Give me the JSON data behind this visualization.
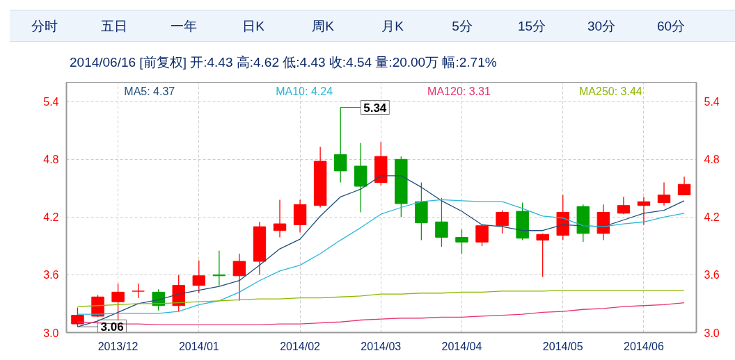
{
  "chart_data": {
    "type": "candlestick",
    "subtitle": "2014/06/16 [前复权] 开:4.43 高:4.62 低:4.43 收:4.54 量:20.00万 幅:2.71%",
    "categories": [
      null,
      null,
      "2013/12",
      null,
      null,
      null,
      "2014/01",
      null,
      null,
      null,
      null,
      "2014/02",
      null,
      null,
      null,
      "2014/03",
      null,
      null,
      null,
      "2014/04",
      null,
      null,
      null,
      null,
      "2014/05",
      null,
      null,
      null,
      "2014/06",
      null,
      null
    ],
    "ohlc": [
      [
        3.09,
        3.26,
        3.06,
        3.18
      ],
      [
        3.17,
        3.39,
        3.16,
        3.37
      ],
      [
        3.32,
        3.51,
        3.13,
        3.42
      ],
      [
        3.43,
        3.51,
        3.36,
        3.43
      ],
      [
        3.42,
        3.45,
        3.23,
        3.28
      ],
      [
        3.28,
        3.6,
        3.22,
        3.49
      ],
      [
        3.49,
        3.75,
        3.41,
        3.59
      ],
      [
        3.6,
        3.85,
        3.49,
        3.59
      ],
      [
        3.59,
        3.82,
        3.33,
        3.74
      ],
      [
        3.74,
        4.15,
        3.6,
        4.1
      ],
      [
        4.06,
        4.38,
        3.99,
        4.13
      ],
      [
        4.12,
        4.38,
        4.04,
        4.33
      ],
      [
        4.32,
        4.93,
        4.3,
        4.78
      ],
      [
        4.85,
        5.34,
        4.56,
        4.68
      ],
      [
        4.73,
        4.97,
        4.25,
        4.52
      ],
      [
        4.56,
        4.98,
        4.53,
        4.83
      ],
      [
        4.8,
        4.83,
        4.2,
        4.34
      ],
      [
        4.36,
        4.56,
        3.96,
        4.14
      ],
      [
        4.15,
        4.4,
        3.89,
        3.99
      ],
      [
        3.99,
        4.07,
        3.82,
        3.94
      ],
      [
        3.94,
        4.11,
        3.9,
        4.11
      ],
      [
        4.11,
        4.27,
        4.03,
        4.25
      ],
      [
        4.26,
        4.35,
        3.96,
        3.98
      ],
      [
        3.96,
        4.03,
        3.58,
        4.02
      ],
      [
        4.01,
        4.43,
        3.96,
        4.25
      ],
      [
        4.31,
        4.33,
        3.94,
        4.03
      ],
      [
        4.03,
        4.33,
        3.96,
        4.25
      ],
      [
        4.24,
        4.41,
        4.23,
        4.32
      ],
      [
        4.32,
        4.41,
        4.12,
        4.36
      ],
      [
        4.35,
        4.56,
        4.32,
        4.43
      ],
      [
        4.43,
        4.62,
        4.43,
        4.54
      ]
    ],
    "colors": [
      "#ff0000",
      "#ff0000",
      "#ff0000",
      "#ff0000",
      "#00a000",
      "#ff0000",
      "#ff0000",
      "#00a000",
      "#ff0000",
      "#ff0000",
      "#ff0000",
      "#ff0000",
      "#ff0000",
      "#00a000",
      "#00a000",
      "#ff0000",
      "#00a000",
      "#00a000",
      "#00a000",
      "#00a000",
      "#ff0000",
      "#ff0000",
      "#00a000",
      "#ff0000",
      "#ff0000",
      "#00a000",
      "#ff0000",
      "#ff0000",
      "#ff0000",
      "#ff0000",
      "#ff0000"
    ],
    "series": [
      {
        "name": "MA5: 4.37",
        "type": "line",
        "color": "#1f4e79",
        "values": [
          3.06,
          3.12,
          3.21,
          3.3,
          3.34,
          3.4,
          3.44,
          3.48,
          3.54,
          3.7,
          3.87,
          3.97,
          4.21,
          4.41,
          4.49,
          4.63,
          4.63,
          4.51,
          4.37,
          4.26,
          4.12,
          4.1,
          4.06,
          4.06,
          4.12,
          4.11,
          4.1,
          4.17,
          4.24,
          4.27,
          4.37
        ]
      },
      {
        "name": "MA10: 4.24",
        "type": "line",
        "color": "#29b6d8",
        "values": [
          3.19,
          3.19,
          3.2,
          3.2,
          3.2,
          3.22,
          3.29,
          3.33,
          3.42,
          3.54,
          3.64,
          3.7,
          3.82,
          3.96,
          4.09,
          4.23,
          4.3,
          4.36,
          4.38,
          4.37,
          4.36,
          4.36,
          4.29,
          4.21,
          4.19,
          4.11,
          4.1,
          4.13,
          4.15,
          4.2,
          4.24
        ]
      },
      {
        "name": "MA120: 3.31",
        "type": "line",
        "color": "#e8336c",
        "values": [
          3.11,
          3.1,
          3.09,
          3.09,
          3.08,
          3.08,
          3.08,
          3.08,
          3.08,
          3.08,
          3.09,
          3.09,
          3.1,
          3.11,
          3.13,
          3.14,
          3.15,
          3.15,
          3.16,
          3.16,
          3.17,
          3.18,
          3.19,
          3.21,
          3.22,
          3.24,
          3.25,
          3.27,
          3.28,
          3.29,
          3.31
        ]
      },
      {
        "name": "MA250: 3.44",
        "type": "line",
        "color": "#8cb800",
        "values": [
          3.27,
          3.28,
          3.29,
          3.3,
          3.3,
          3.31,
          3.32,
          3.33,
          3.34,
          3.35,
          3.35,
          3.36,
          3.36,
          3.37,
          3.38,
          3.4,
          3.4,
          3.41,
          3.41,
          3.42,
          3.42,
          3.43,
          3.43,
          3.43,
          3.44,
          3.44,
          3.44,
          3.44,
          3.44,
          3.44,
          3.44
        ]
      }
    ],
    "ylim": [
      3.0,
      5.6
    ],
    "yticks": [
      {
        "value": 3.0,
        "label": "3.0"
      },
      {
        "value": 3.6,
        "label": "3.6"
      },
      {
        "value": 4.2,
        "label": "4.2"
      },
      {
        "value": 4.8,
        "label": "4.8"
      },
      {
        "value": 5.4,
        "label": "5.4"
      }
    ],
    "y2lim": [
      3.0,
      5.6
    ],
    "y2ticks": [
      {
        "value": 3.0,
        "label": "3.0"
      },
      {
        "value": 3.6,
        "label": "3.6"
      },
      {
        "value": 4.2,
        "label": "4.2"
      },
      {
        "value": 4.8,
        "label": "4.8"
      },
      {
        "value": 5.4,
        "label": "5.4"
      }
    ],
    "grid": true,
    "legend": "top",
    "annotations": [
      "分时",
      "五日",
      "一年",
      "日K",
      "周K",
      "月K",
      "5分",
      "15分",
      "30分",
      "60分",
      {
        "text": "5.34",
        "y": 5.34
      },
      {
        "text": "3.06",
        "y": 3.06
      }
    ]
  }
}
